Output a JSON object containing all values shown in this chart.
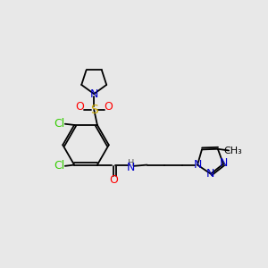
{
  "bg_color": "#e8e8e8",
  "atom_colors": {
    "C": "#000000",
    "N": "#0000cc",
    "O": "#ff0000",
    "S": "#ccaa00",
    "Cl": "#33cc00",
    "H": "#888888"
  },
  "bond_color": "#000000",
  "bond_lw": 1.3
}
